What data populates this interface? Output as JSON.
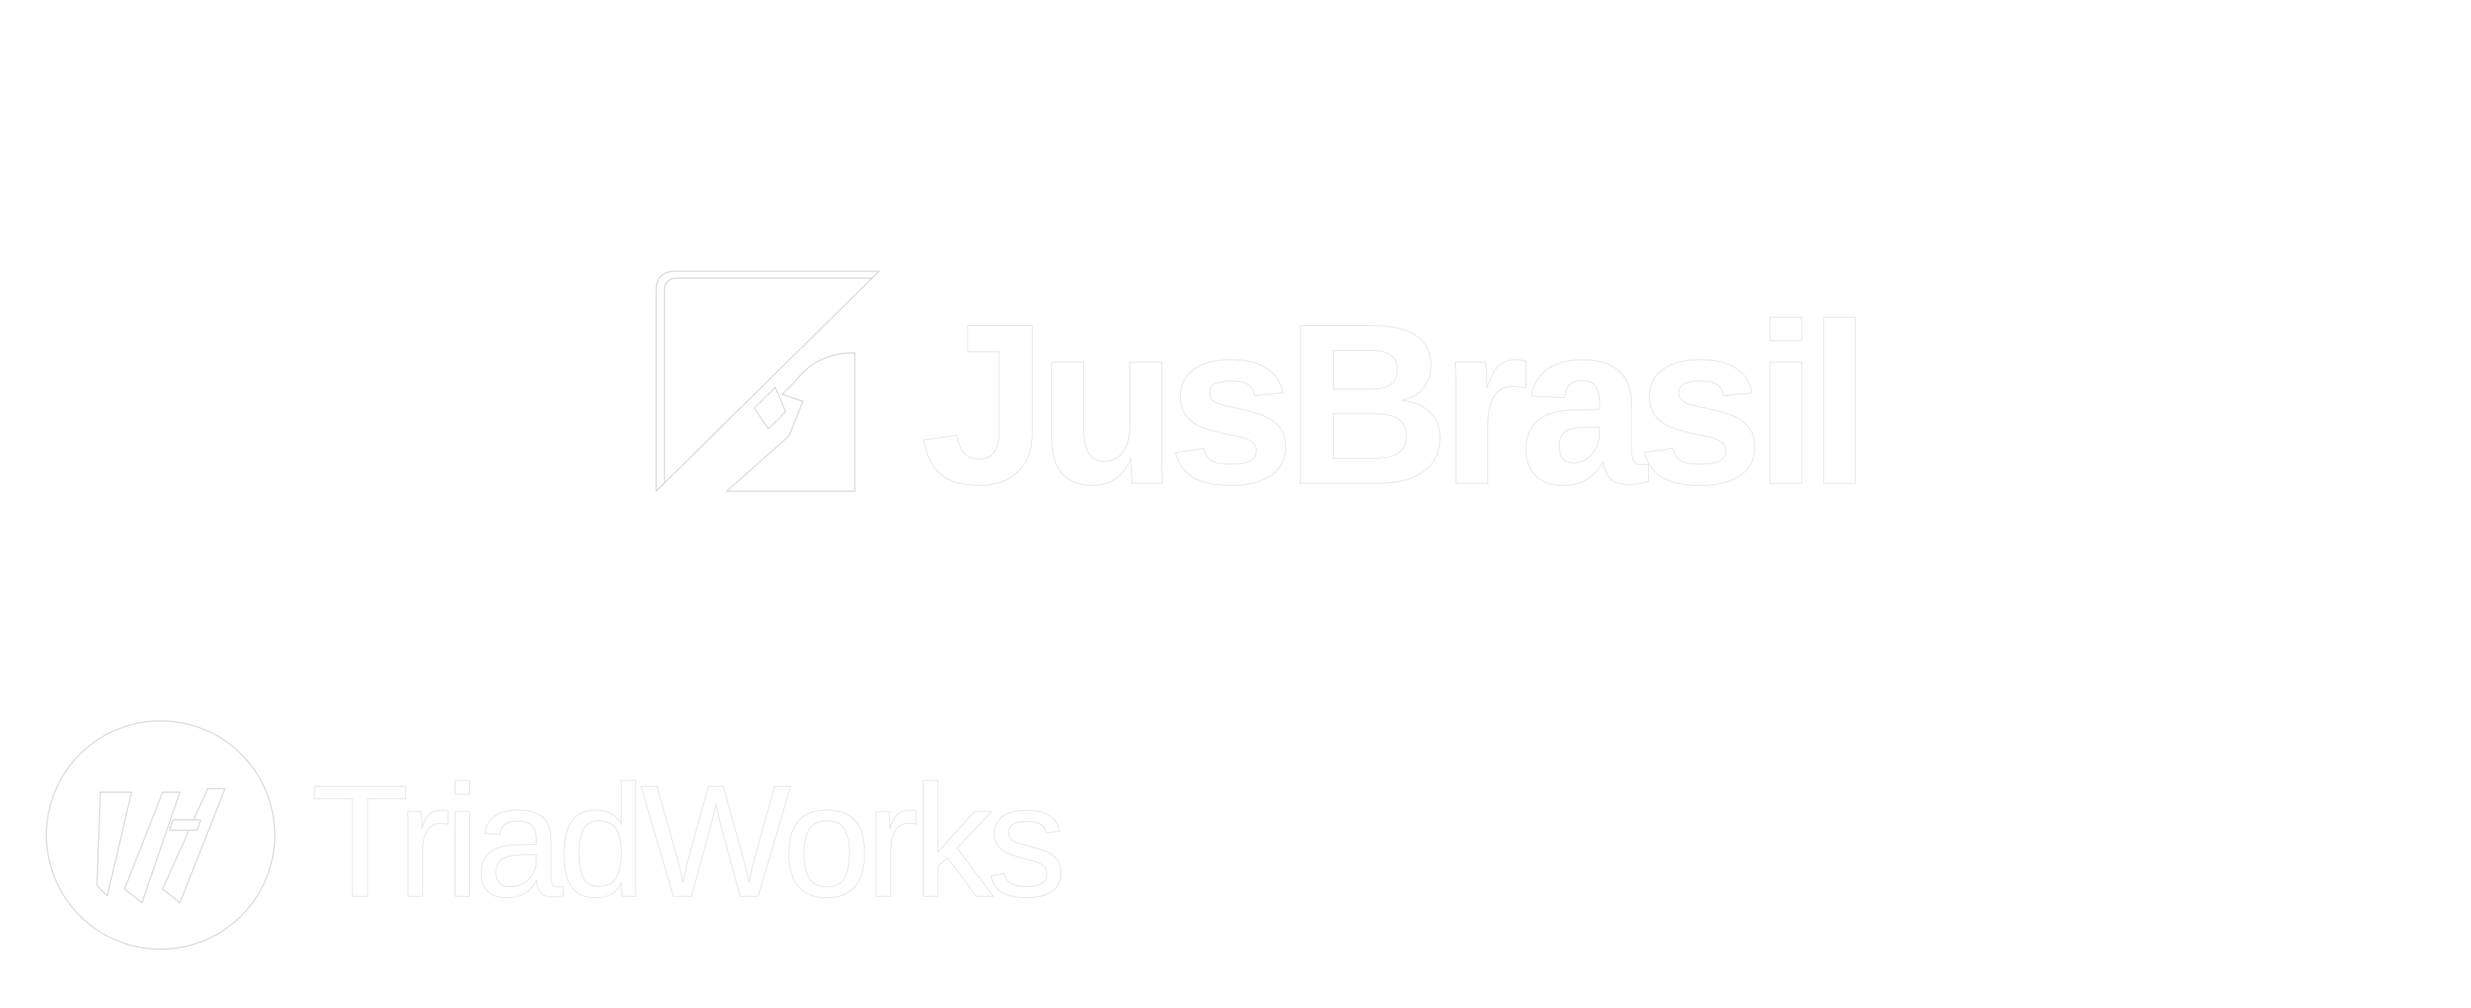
{
  "primary_logo": {
    "text": "JusBrasil",
    "icon": "scales-triangle-icon",
    "color": "#ffffff",
    "outline_color": "#d6d6d6"
  },
  "secondary_logo": {
    "text": "TriadWorks",
    "icon": "tw-circle-emblem-icon",
    "color": "#ffffff",
    "outline_color": "#d6d6d6"
  },
  "background": "#ffffff"
}
